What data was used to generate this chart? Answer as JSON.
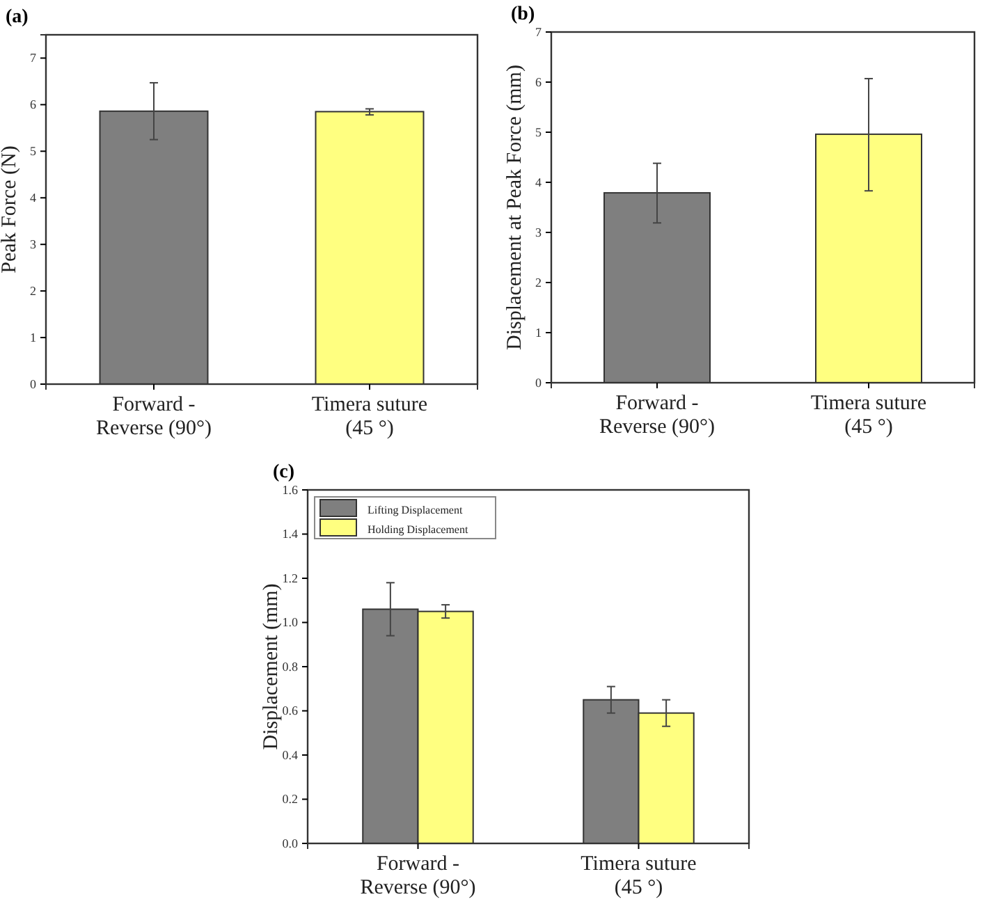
{
  "chart_data": [
    {
      "type": "bar",
      "title": "(a)",
      "ylabel": "Peak Force (N)",
      "categories": [
        "Forward -\nReverse (90°)",
        "Timera suture\n(45 °)"
      ],
      "values": [
        5.86,
        5.85
      ],
      "colors": [
        "#7f7f7f",
        "#ffff80"
      ],
      "errors": [
        [
          5.25,
          6.47
        ],
        [
          5.78,
          5.91
        ]
      ],
      "ylim": [
        0,
        7.5
      ],
      "yticks": [
        0,
        1,
        2,
        3,
        4,
        5,
        6,
        7
      ],
      "grid": false,
      "legend": false
    },
    {
      "type": "bar",
      "title": "(b)",
      "ylabel": "Displacement at Peak Force (mm)",
      "categories": [
        "Forward -\nReverse (90°)",
        "Timera suture\n(45 °)"
      ],
      "values": [
        3.79,
        4.96
      ],
      "colors": [
        "#7f7f7f",
        "#ffff80"
      ],
      "errors": [
        [
          3.19,
          4.38
        ],
        [
          3.83,
          6.07
        ]
      ],
      "ylim": [
        0,
        7
      ],
      "yticks": [
        0,
        1,
        2,
        3,
        4,
        5,
        6,
        7
      ],
      "grid": false,
      "legend": false
    },
    {
      "type": "bar",
      "title": "(c)",
      "ylabel": "Displacement (mm)",
      "categories": [
        "Forward -\nReverse (90°)",
        "Timera suture\n(45 °)"
      ],
      "series": [
        {
          "name": "Lifting Displacement",
          "color": "#7f7f7f",
          "values": [
            1.06,
            0.65
          ],
          "errors": [
            [
              0.94,
              1.18
            ],
            [
              0.59,
              0.71
            ]
          ]
        },
        {
          "name": "Holding Displacement",
          "color": "#ffff80",
          "values": [
            1.05,
            0.59
          ],
          "errors": [
            [
              1.02,
              1.08
            ],
            [
              0.53,
              0.65
            ]
          ]
        }
      ],
      "ylim": [
        0,
        1.6
      ],
      "yticks": [
        {
          "value": 0,
          "label": "0.0"
        },
        {
          "value": 0.2,
          "label": "0.2"
        },
        {
          "value": 0.4,
          "label": "0.4"
        },
        {
          "value": 0.6,
          "label": "0.6"
        },
        {
          "value": 0.8,
          "label": "0.8"
        },
        {
          "value": 1,
          "label": "1.0"
        },
        {
          "value": 1.2,
          "label": "1.2"
        },
        {
          "value": 1.4,
          "label": "1.4"
        },
        {
          "value": 1.6,
          "label": "1.6"
        }
      ],
      "grid": false,
      "legend": "top left"
    }
  ]
}
